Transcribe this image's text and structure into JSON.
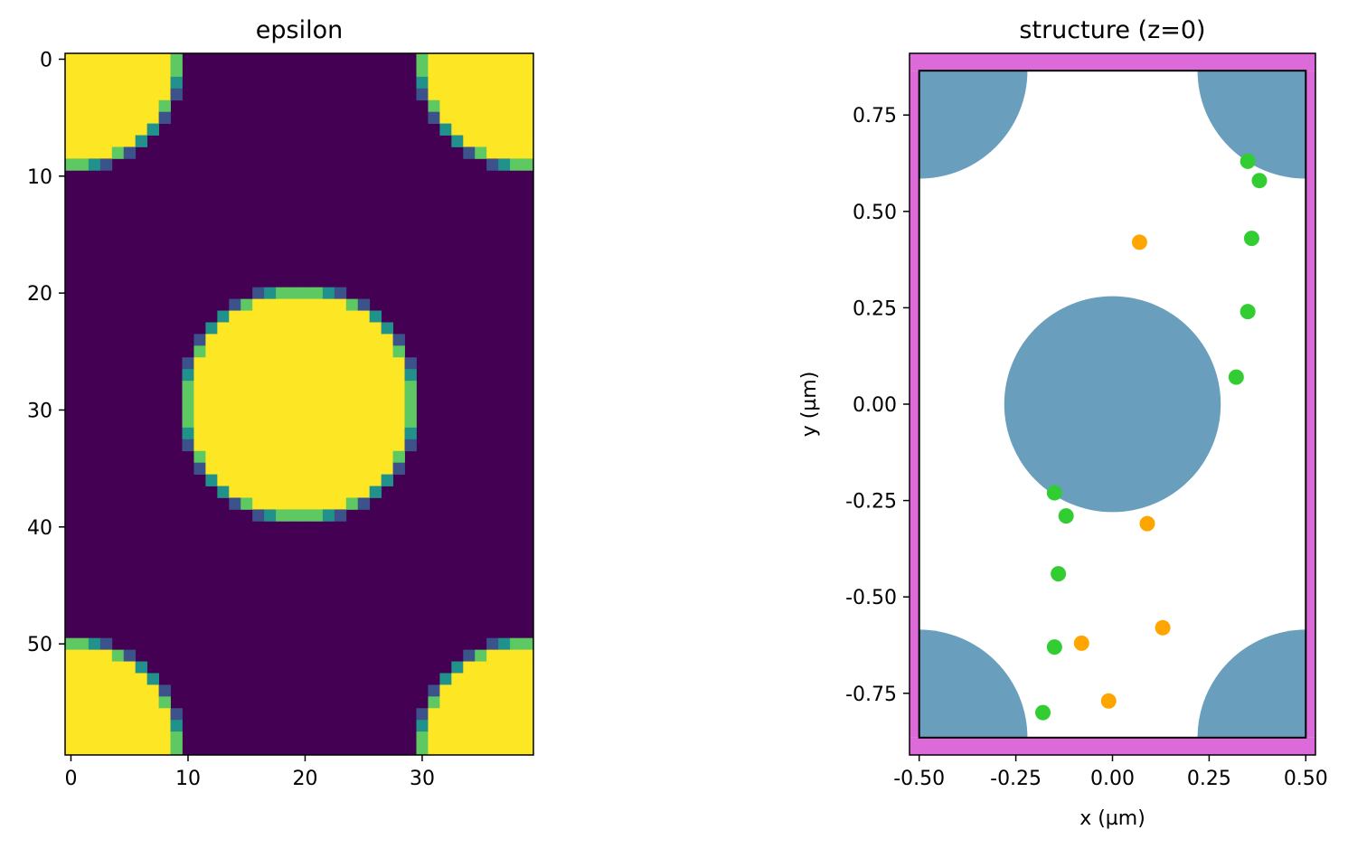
{
  "chart_data": [
    {
      "type": "heatmap",
      "title": "epsilon",
      "xlabel": "",
      "ylabel": "",
      "x_ticks": [
        "0",
        "10",
        "20",
        "30"
      ],
      "y_ticks": [
        "0",
        "10",
        "20",
        "30",
        "40",
        "50"
      ],
      "grid": false,
      "colormap": "viridis",
      "colors": {
        "background": "#440154",
        "high": "#fde725",
        "edge_mid": "#21918c",
        "edge_light": "#5ec962",
        "edge_dark": "#3b528b"
      }
    },
    {
      "type": "scatter",
      "title": "structure (z=0)",
      "xlabel": "x (µm)",
      "ylabel": "y (µm)",
      "xlim": [
        -0.525,
        0.525
      ],
      "ylim": [
        -0.91,
        0.91
      ],
      "x_ticks": [
        "-0.50",
        "-0.25",
        "0.00",
        "0.25",
        "0.50"
      ],
      "y_ticks": [
        "-0.75",
        "-0.50",
        "-0.25",
        "0.00",
        "0.25",
        "0.50",
        "0.75"
      ],
      "grid": false,
      "colors": {
        "structure": "#699fbd",
        "boundary": "#dc6ad8",
        "green_points": "#32cd32",
        "orange_points": "#ffa500"
      },
      "green_points": [
        {
          "x": 0.35,
          "y": 0.63
        },
        {
          "x": 0.38,
          "y": 0.58
        },
        {
          "x": 0.36,
          "y": 0.43
        },
        {
          "x": 0.35,
          "y": 0.24
        },
        {
          "x": 0.32,
          "y": 0.07
        },
        {
          "x": -0.15,
          "y": -0.23
        },
        {
          "x": -0.12,
          "y": -0.29
        },
        {
          "x": -0.14,
          "y": -0.44
        },
        {
          "x": -0.15,
          "y": -0.63
        },
        {
          "x": -0.18,
          "y": -0.8
        }
      ],
      "orange_points": [
        {
          "x": 0.07,
          "y": 0.42
        },
        {
          "x": 0.09,
          "y": -0.31
        },
        {
          "x": 0.13,
          "y": -0.58
        },
        {
          "x": -0.08,
          "y": -0.62
        },
        {
          "x": -0.01,
          "y": -0.77
        }
      ]
    }
  ]
}
